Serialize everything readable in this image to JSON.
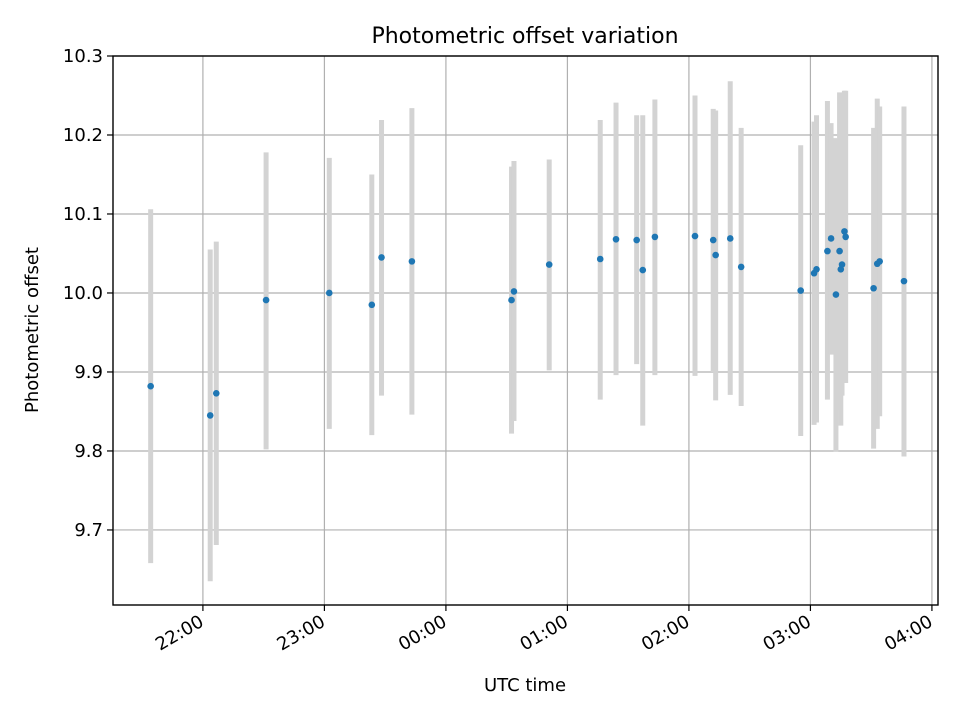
{
  "chart_data": {
    "type": "scatter",
    "title": "Photometric offset variation",
    "xlabel": "UTC time",
    "ylabel": "Photometric offset",
    "x_unit": "UTC time (hours relative to 00:00)",
    "xlim": [
      -2.74,
      4.05
    ],
    "ylim": [
      9.605,
      10.3
    ],
    "grid": true,
    "xticks": [
      {
        "value": -2.0,
        "label": "22:00"
      },
      {
        "value": -1.0,
        "label": "23:00"
      },
      {
        "value": 0.0,
        "label": "00:00"
      },
      {
        "value": 1.0,
        "label": "01:00"
      },
      {
        "value": 2.0,
        "label": "02:00"
      },
      {
        "value": 3.0,
        "label": "03:00"
      },
      {
        "value": 4.0,
        "label": "04:00"
      }
    ],
    "yticks": [
      {
        "value": 9.7,
        "label": "9.7"
      },
      {
        "value": 9.8,
        "label": "9.8"
      },
      {
        "value": 9.9,
        "label": "9.9"
      },
      {
        "value": 10.0,
        "label": "10.0"
      },
      {
        "value": 10.1,
        "label": "10.1"
      },
      {
        "value": 10.2,
        "label": "10.2"
      },
      {
        "value": 10.3,
        "label": "10.3"
      }
    ],
    "series": [
      {
        "marker_color": "#1f77b4",
        "errorbar_color": "#d3d3d3",
        "points": [
          {
            "x": -2.43,
            "y": 9.882,
            "ylow": 9.658,
            "yhigh": 10.106
          },
          {
            "x": -1.94,
            "y": 9.845,
            "ylow": 9.635,
            "yhigh": 10.055
          },
          {
            "x": -1.89,
            "y": 9.873,
            "ylow": 9.681,
            "yhigh": 10.065
          },
          {
            "x": -1.48,
            "y": 9.991,
            "ylow": 9.802,
            "yhigh": 10.178
          },
          {
            "x": -0.96,
            "y": 10.0,
            "ylow": 9.828,
            "yhigh": 10.171
          },
          {
            "x": -0.61,
            "y": 9.985,
            "ylow": 9.82,
            "yhigh": 10.15
          },
          {
            "x": -0.53,
            "y": 10.045,
            "ylow": 9.87,
            "yhigh": 10.219
          },
          {
            "x": -0.28,
            "y": 10.04,
            "ylow": 9.846,
            "yhigh": 10.234
          },
          {
            "x": 0.54,
            "y": 9.991,
            "ylow": 9.822,
            "yhigh": 10.16
          },
          {
            "x": 0.56,
            "y": 10.002,
            "ylow": 9.838,
            "yhigh": 10.167
          },
          {
            "x": 0.85,
            "y": 10.036,
            "ylow": 9.902,
            "yhigh": 10.169
          },
          {
            "x": 1.27,
            "y": 10.043,
            "ylow": 9.865,
            "yhigh": 10.219
          },
          {
            "x": 1.4,
            "y": 10.068,
            "ylow": 9.896,
            "yhigh": 10.241
          },
          {
            "x": 1.57,
            "y": 10.067,
            "ylow": 9.91,
            "yhigh": 10.225
          },
          {
            "x": 1.62,
            "y": 10.029,
            "ylow": 9.832,
            "yhigh": 10.225
          },
          {
            "x": 1.72,
            "y": 10.071,
            "ylow": 9.896,
            "yhigh": 10.245
          },
          {
            "x": 2.05,
            "y": 10.072,
            "ylow": 9.895,
            "yhigh": 10.25
          },
          {
            "x": 2.2,
            "y": 10.067,
            "ylow": 9.9,
            "yhigh": 10.233
          },
          {
            "x": 2.22,
            "y": 10.048,
            "ylow": 9.864,
            "yhigh": 10.231
          },
          {
            "x": 2.34,
            "y": 10.069,
            "ylow": 9.871,
            "yhigh": 10.268
          },
          {
            "x": 2.43,
            "y": 10.033,
            "ylow": 9.857,
            "yhigh": 10.209
          },
          {
            "x": 2.92,
            "y": 10.003,
            "ylow": 9.819,
            "yhigh": 10.187
          },
          {
            "x": 3.03,
            "y": 10.025,
            "ylow": 9.833,
            "yhigh": 10.217
          },
          {
            "x": 3.05,
            "y": 10.03,
            "ylow": 9.836,
            "yhigh": 10.225
          },
          {
            "x": 3.14,
            "y": 10.053,
            "ylow": 9.865,
            "yhigh": 10.243
          },
          {
            "x": 3.17,
            "y": 10.069,
            "ylow": 9.922,
            "yhigh": 10.215
          },
          {
            "x": 3.21,
            "y": 9.998,
            "ylow": 9.799,
            "yhigh": 10.196
          },
          {
            "x": 3.24,
            "y": 10.053,
            "ylow": 9.852,
            "yhigh": 10.254
          },
          {
            "x": 3.25,
            "y": 10.03,
            "ylow": 9.832,
            "yhigh": 10.228
          },
          {
            "x": 3.26,
            "y": 10.036,
            "ylow": 9.87,
            "yhigh": 10.201
          },
          {
            "x": 3.28,
            "y": 10.078,
            "ylow": 9.9,
            "yhigh": 10.256
          },
          {
            "x": 3.29,
            "y": 10.071,
            "ylow": 9.886,
            "yhigh": 10.256
          },
          {
            "x": 3.52,
            "y": 10.006,
            "ylow": 9.803,
            "yhigh": 10.209
          },
          {
            "x": 3.55,
            "y": 10.037,
            "ylow": 9.828,
            "yhigh": 10.246
          },
          {
            "x": 3.57,
            "y": 10.04,
            "ylow": 9.844,
            "yhigh": 10.236
          },
          {
            "x": 3.77,
            "y": 10.015,
            "ylow": 9.793,
            "yhigh": 10.236
          }
        ]
      }
    ]
  }
}
